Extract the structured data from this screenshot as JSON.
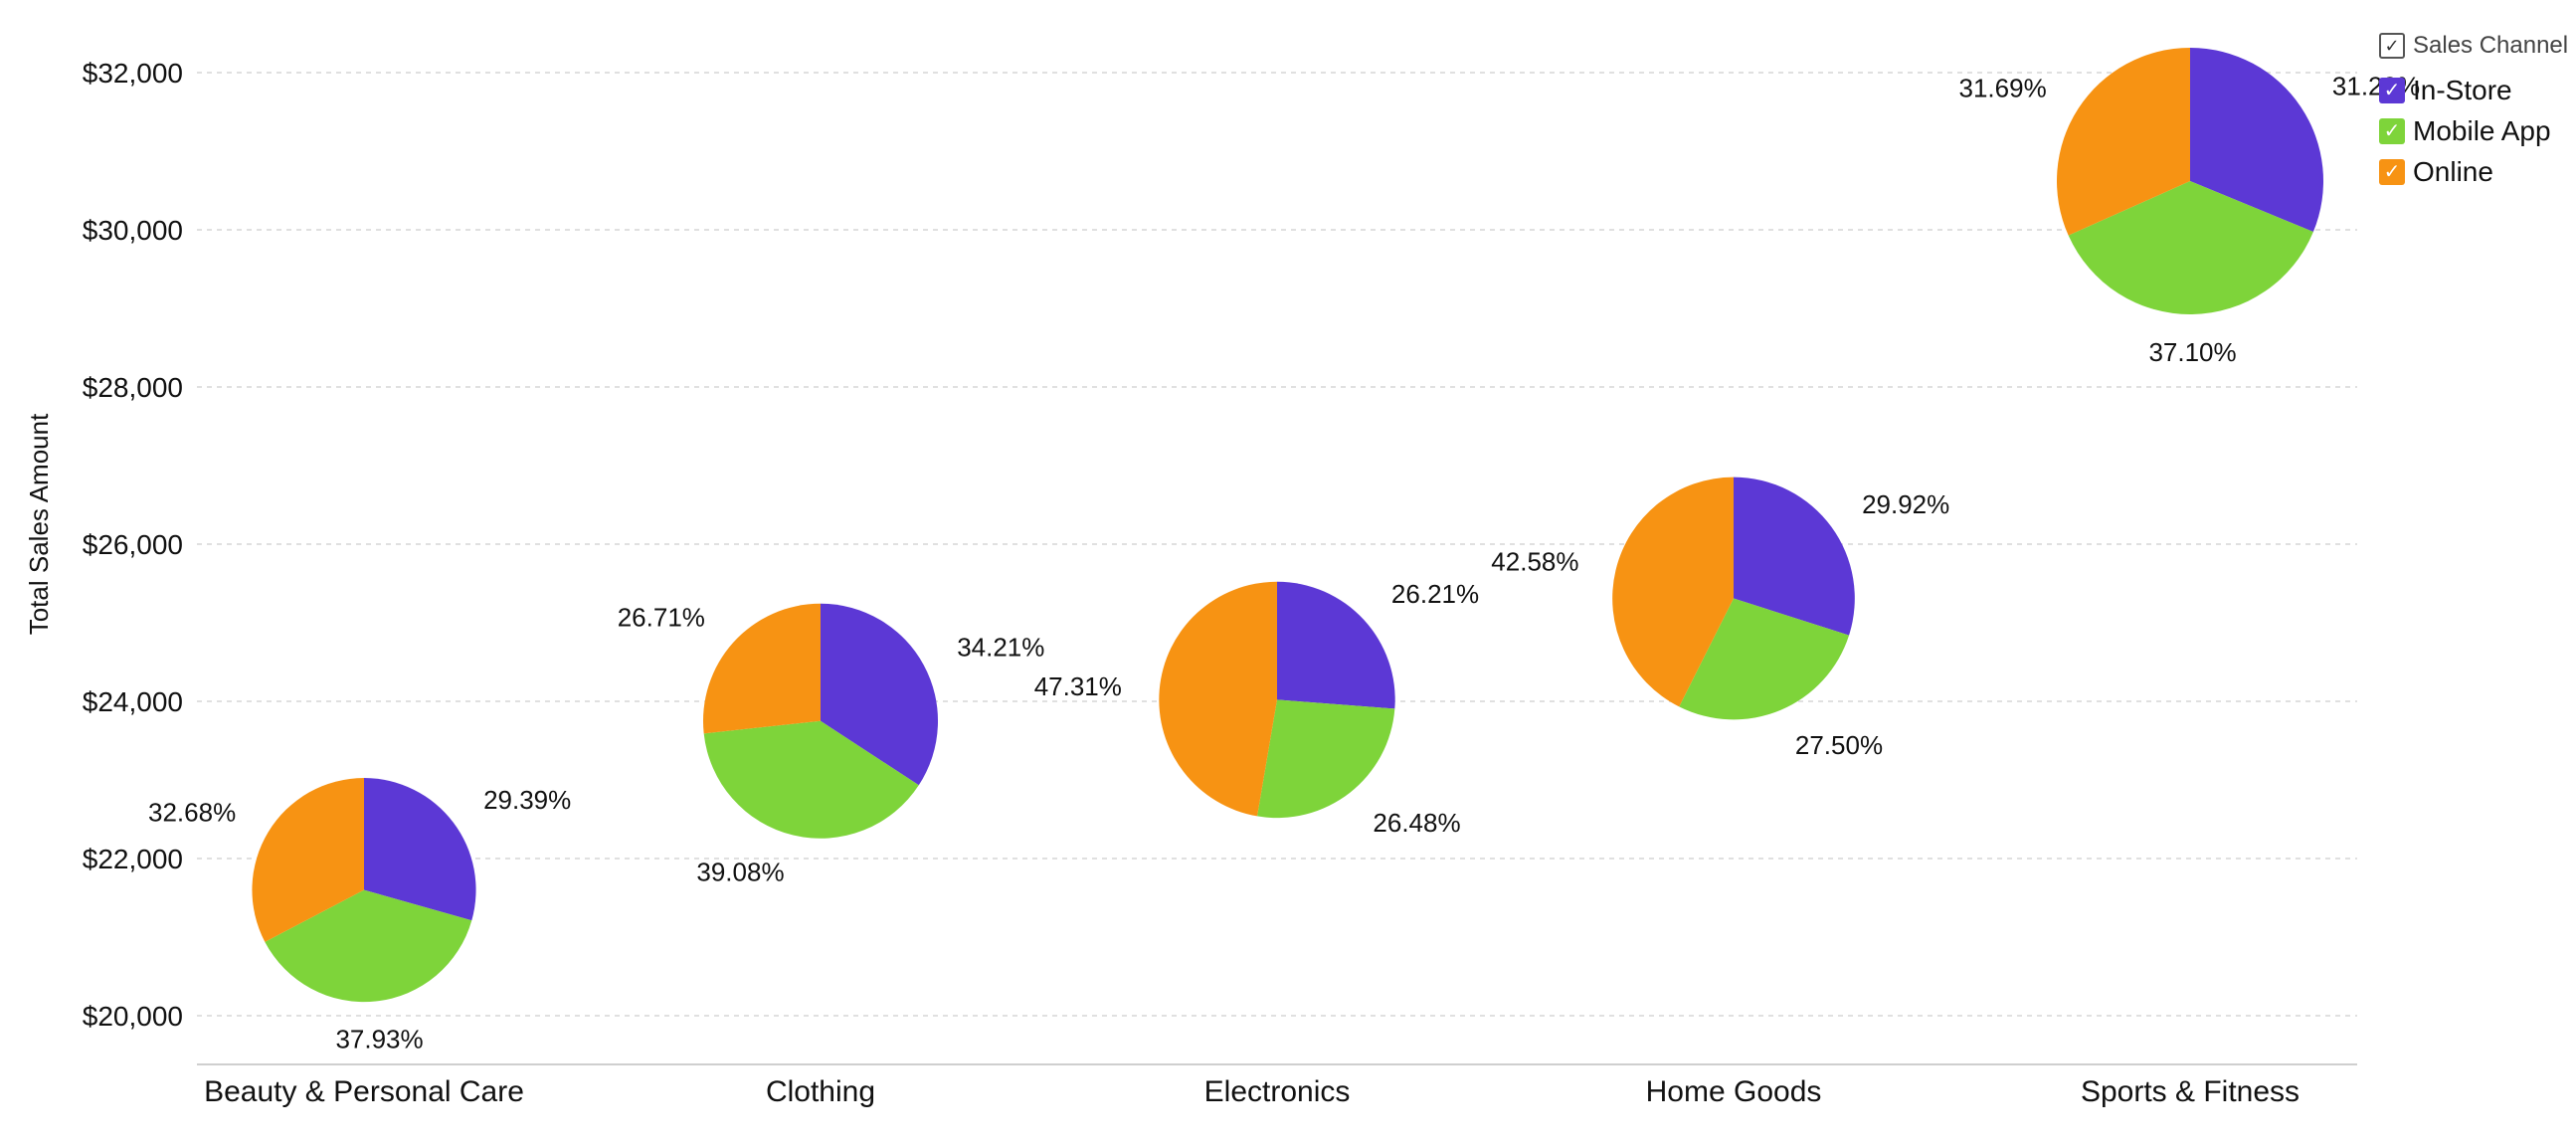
{
  "chart_data": {
    "type": "pie-scatter",
    "ylabel": "Total Sales Amount",
    "ylim": [
      19400,
      32600
    ],
    "yticks": [
      20000,
      22000,
      24000,
      26000,
      28000,
      30000,
      32000
    ],
    "ytick_labels": [
      "$20,000",
      "$22,000",
      "$24,000",
      "$26,000",
      "$28,000",
      "$30,000",
      "$32,000"
    ],
    "categories": [
      "Beauty & Personal Care",
      "Clothing",
      "Electronics",
      "Home Goods",
      "Sports & Fitness"
    ],
    "totals": [
      21600,
      23750,
      24020,
      25310,
      30620
    ],
    "legend": {
      "title": "Sales Channel",
      "placement": "top-right",
      "items": [
        "In-Store",
        "Mobile App",
        "Online"
      ]
    },
    "colors": {
      "In-Store": "#5c38d5",
      "Mobile App": "#7ed43a",
      "Online": "#f79313"
    },
    "series": [
      {
        "name": "In-Store",
        "values": [
          29.39,
          34.21,
          26.21,
          29.92,
          31.22
        ],
        "labels": [
          "29.39%",
          "34.21%",
          "26.21%",
          "29.92%",
          "31.22%"
        ]
      },
      {
        "name": "Mobile App",
        "values": [
          37.93,
          39.08,
          26.48,
          27.5,
          37.1
        ],
        "labels": [
          "37.93%",
          "39.08%",
          "26.48%",
          "27.50%",
          "37.10%"
        ]
      },
      {
        "name": "Online",
        "values": [
          32.68,
          26.71,
          47.31,
          42.58,
          31.69
        ],
        "labels": [
          "32.68%",
          "26.71%",
          "47.31%",
          "42.58%",
          "31.69%"
        ]
      }
    ]
  }
}
